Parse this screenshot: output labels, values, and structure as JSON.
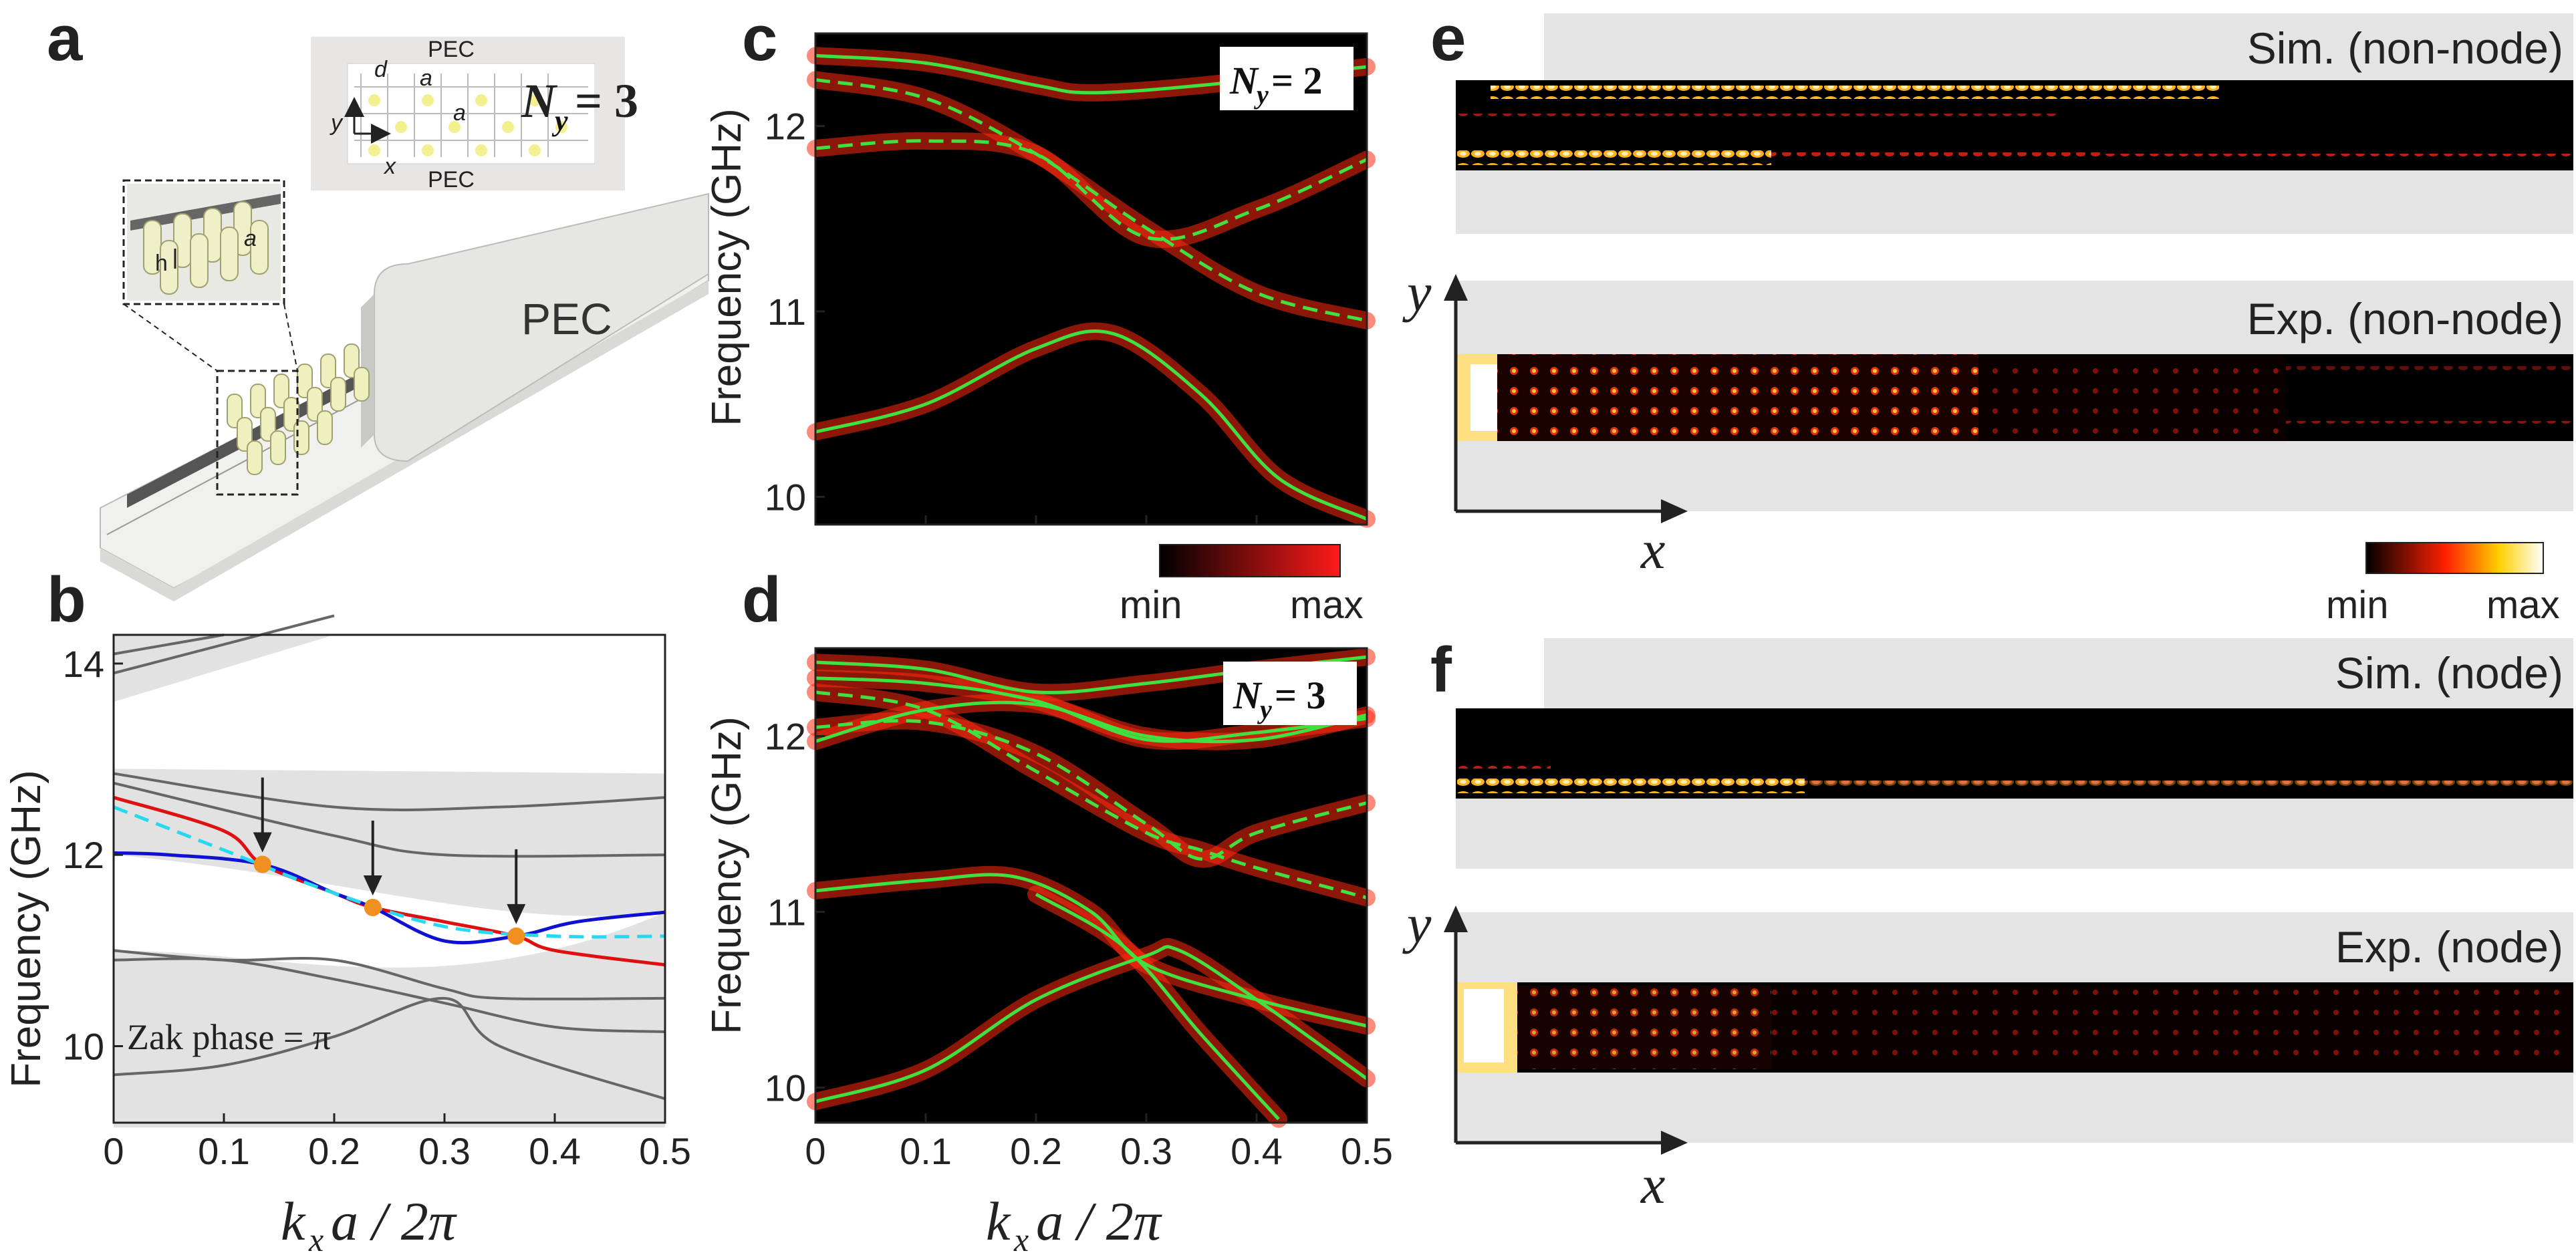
{
  "panels": {
    "a": {
      "label": "a",
      "top_label": "PEC",
      "bottom_label": "PEC",
      "waveguide_label": "PEC",
      "ny_label": "N",
      "ny_sub": "y",
      "ny_value": "= 3",
      "d_label": "d",
      "a_label": "a",
      "h_label": "h",
      "y_axis": "y",
      "x_axis": "x"
    },
    "b": {
      "label": "b",
      "ylabel": "Frequency (GHz)",
      "xlabel": "k",
      "xlabel_sub": "x",
      "xlabel_rest": "a / 2π",
      "annotation": "Zak phase = π"
    },
    "c": {
      "label": "c",
      "ylabel": "Frequency (GHz)",
      "badge_n": "N",
      "badge_sub": "y",
      "badge_val": " = 2"
    },
    "d": {
      "label": "d",
      "ylabel": "Frequency (GHz)",
      "xlabel": "k",
      "xlabel_sub": "x",
      "xlabel_rest": "a / 2π",
      "badge_n": "N",
      "badge_sub": "y",
      "badge_val": " = 3"
    },
    "e": {
      "label": "e",
      "sim_title": "Sim. (non-node)",
      "exp_title": "Exp. (non-node)",
      "y_axis": "y",
      "x_axis": "x"
    },
    "f": {
      "label": "f",
      "sim_title": "Sim. (node)",
      "exp_title": "Exp. (node)",
      "y_axis": "y",
      "x_axis": "x"
    }
  },
  "colorbars": {
    "cd": {
      "min": "min",
      "max": "max",
      "colors": [
        "#000000",
        "#ff1a1a"
      ]
    },
    "ef": {
      "min": "min",
      "max": "max",
      "colors": [
        "#000000",
        "#ff2000",
        "#ffd000",
        "#ffffff"
      ]
    }
  },
  "chart_data": [
    {
      "panel": "b",
      "type": "line",
      "xlim": [
        0,
        0.5
      ],
      "ylim": [
        9.2,
        14.3
      ],
      "xticks": [
        "0",
        "0.1",
        "0.2",
        "0.3",
        "0.4",
        "0.5"
      ],
      "yticks": [
        "10",
        "12",
        "14"
      ],
      "series": [
        {
          "color": "#e01010",
          "x": [
            0,
            0.1,
            0.135,
            0.2,
            0.235,
            0.3,
            0.365,
            0.4,
            0.5
          ],
          "y": [
            12.6,
            12.25,
            11.9,
            11.6,
            11.45,
            11.3,
            11.15,
            11.0,
            10.85
          ]
        },
        {
          "color": "#1010d0",
          "x": [
            0,
            0.05,
            0.135,
            0.2,
            0.235,
            0.3,
            0.365,
            0.42,
            0.5
          ],
          "y": [
            12.02,
            12.0,
            11.9,
            11.6,
            11.45,
            11.1,
            11.15,
            11.3,
            11.4
          ]
        },
        {
          "color": "#28d8f0",
          "dashed": true,
          "x": [
            0,
            0.1,
            0.2,
            0.3,
            0.4,
            0.5
          ],
          "y": [
            12.5,
            12.05,
            11.6,
            11.25,
            11.15,
            11.15
          ]
        }
      ],
      "markers": {
        "color": "#f09020",
        "x": [
          0.135,
          0.235,
          0.365
        ],
        "y": [
          11.9,
          11.45,
          11.15
        ]
      }
    },
    {
      "panel": "c",
      "type": "line",
      "xlim": [
        0,
        0.5
      ],
      "ylim": [
        9.85,
        12.5
      ],
      "yticks": [
        "10",
        "11",
        "12"
      ],
      "series": [
        {
          "color": "#40e040",
          "x": [
            0,
            0.1,
            0.2,
            0.25,
            0.35,
            0.5
          ],
          "y": [
            12.38,
            12.34,
            12.22,
            12.18,
            12.22,
            12.32
          ]
        },
        {
          "color": "#40e040",
          "dashed": true,
          "x": [
            0,
            0.1,
            0.2,
            0.3,
            0.4,
            0.5
          ],
          "y": [
            12.25,
            12.15,
            11.85,
            11.45,
            11.1,
            10.95
          ]
        },
        {
          "color": "#40e040",
          "dashed": true,
          "x": [
            0,
            0.1,
            0.2,
            0.3,
            0.4,
            0.5
          ],
          "y": [
            11.88,
            11.92,
            11.85,
            11.4,
            11.55,
            11.82
          ]
        },
        {
          "color": "#40e040",
          "x": [
            0,
            0.1,
            0.2,
            0.27,
            0.35,
            0.42,
            0.5
          ],
          "y": [
            10.35,
            10.5,
            10.8,
            10.88,
            10.55,
            10.1,
            9.88
          ]
        }
      ]
    },
    {
      "panel": "d",
      "type": "line",
      "xlim": [
        0,
        0.5
      ],
      "ylim": [
        9.8,
        12.5
      ],
      "xticks": [
        "0",
        "0.1",
        "0.2",
        "0.3",
        "0.4",
        "0.5"
      ],
      "yticks": [
        "10",
        "11",
        "12"
      ],
      "series": [
        {
          "color": "#40e040",
          "x": [
            0,
            0.1,
            0.2,
            0.3,
            0.4,
            0.5
          ],
          "y": [
            12.42,
            12.38,
            12.25,
            12.3,
            12.38,
            12.45
          ]
        },
        {
          "color": "#40e040",
          "x": [
            0,
            0.1,
            0.2,
            0.3,
            0.4,
            0.5
          ],
          "y": [
            12.33,
            12.3,
            12.2,
            11.98,
            12.02,
            12.1
          ]
        },
        {
          "color": "#40e040",
          "x": [
            0,
            0.1,
            0.2,
            0.3,
            0.4,
            0.5
          ],
          "y": [
            11.97,
            12.15,
            12.18,
            12.0,
            11.98,
            12.12
          ]
        },
        {
          "color": "#40e040",
          "dashed": true,
          "x": [
            0,
            0.1,
            0.2,
            0.3,
            0.35,
            0.4,
            0.5
          ],
          "y": [
            12.25,
            12.15,
            11.8,
            11.45,
            11.35,
            11.25,
            11.08
          ]
        },
        {
          "color": "#40e040",
          "dashed": true,
          "x": [
            0,
            0.1,
            0.2,
            0.3,
            0.35,
            0.4,
            0.5
          ],
          "y": [
            12.05,
            12.08,
            11.9,
            11.5,
            11.3,
            11.45,
            11.62
          ]
        },
        {
          "color": "#40e040",
          "x": [
            0,
            0.1,
            0.18,
            0.25,
            0.3,
            0.4,
            0.5
          ],
          "y": [
            11.12,
            11.18,
            11.2,
            11.0,
            10.7,
            10.5,
            10.35
          ]
        },
        {
          "color": "#40e040",
          "x": [
            0,
            0.1,
            0.2,
            0.3,
            0.33,
            0.4,
            0.5
          ],
          "y": [
            9.92,
            10.1,
            10.5,
            10.75,
            10.78,
            10.5,
            10.05
          ]
        },
        {
          "color": "#40e040",
          "x": [
            0.2,
            0.28,
            0.35,
            0.42
          ],
          "y": [
            11.1,
            10.8,
            10.3,
            9.82
          ]
        }
      ]
    }
  ]
}
